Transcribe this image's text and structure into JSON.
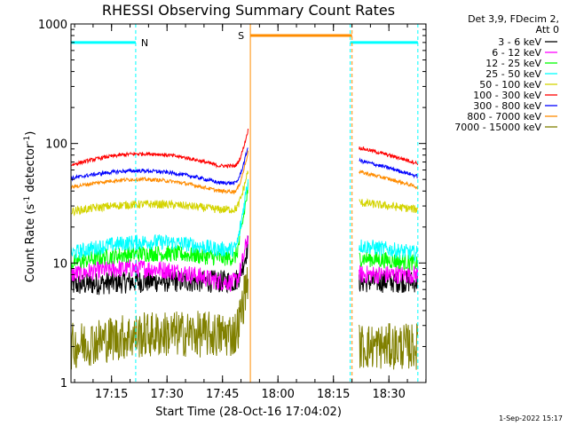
{
  "chart_data": {
    "type": "line",
    "title": "RHESSI Observing Summary Count Rates",
    "xlabel": "Start Time (28-Oct-16 17:04:02)",
    "ylabel": "Count Rate (s⁻¹ detector⁻¹)",
    "ylabel_main": "Count Rate (s",
    "ylabel_sup1": "-1",
    "ylabel_mid": " detector",
    "ylabel_sup2": "-1",
    "ylabel_end": ")",
    "yscale": "log",
    "ylim": [
      1,
      1000
    ],
    "xlim_minutes": [
      0,
      96
    ],
    "xticks": [
      {
        "label": "17:15",
        "minutes": 10.97
      },
      {
        "label": "17:30",
        "minutes": 25.97
      },
      {
        "label": "17:45",
        "minutes": 40.97
      },
      {
        "label": "18:00",
        "minutes": 55.97
      },
      {
        "label": "18:15",
        "minutes": 70.97
      },
      {
        "label": "18:30",
        "minutes": 85.97
      }
    ],
    "yticks": [
      {
        "label": "1",
        "value": 1
      },
      {
        "label": "10",
        "value": 10
      },
      {
        "label": "100",
        "value": 100
      },
      {
        "label": "1000",
        "value": 1000
      }
    ],
    "legend_header": [
      "Det 3,9, FDecim 2,",
      "Att 0"
    ],
    "annotation_date": "1-Sep-2022 15:17",
    "data_gaps": [
      [
        48.5,
        77.5
      ]
    ],
    "series": [
      {
        "name": "3 - 6 keV",
        "color": "#000000",
        "pre_start": 6.5,
        "pre_hump": 7,
        "pre_end": 7,
        "rise_end": 14,
        "post_start": 7,
        "post_end": 7,
        "noise": 0.22
      },
      {
        "name": "6 - 12 keV",
        "color": "#ff00ff",
        "pre_start": 8,
        "pre_hump": 9,
        "pre_end": 7,
        "rise_end": 17,
        "post_start": 8,
        "post_end": 8,
        "noise": 0.18
      },
      {
        "name": "12 - 25 keV",
        "color": "#00ff00",
        "pre_start": 10,
        "pre_hump": 12,
        "pre_end": 11,
        "rise_end": 42,
        "post_start": 11,
        "post_end": 10,
        "noise": 0.16
      },
      {
        "name": "25 - 50 keV",
        "color": "#00ffff",
        "pre_start": 12,
        "pre_hump": 15,
        "pre_end": 13,
        "rise_end": 50,
        "post_start": 14,
        "post_end": 12,
        "noise": 0.15
      },
      {
        "name": "50 - 100 keV",
        "color": "#d4d400",
        "pre_start": 27,
        "pre_hump": 31,
        "pre_end": 28,
        "rise_end": 60,
        "post_start": 32,
        "post_end": 28,
        "noise": 0.08
      },
      {
        "name": "100 - 300 keV",
        "color": "#ff0000",
        "pre_start": 66,
        "pre_hump": 82,
        "pre_end": 65,
        "rise_end": 130,
        "post_start": 92,
        "post_end": 68,
        "noise": 0.035
      },
      {
        "name": "300 - 800 keV",
        "color": "#0000ff",
        "pre_start": 51,
        "pre_hump": 59,
        "pre_end": 47,
        "rise_end": 95,
        "post_start": 72,
        "post_end": 53,
        "noise": 0.035
      },
      {
        "name": "800 - 7000 keV",
        "color": "#ff8c00",
        "pre_start": 43,
        "pre_hump": 50,
        "pre_end": 40,
        "rise_end": 85,
        "post_start": 58,
        "post_end": 43,
        "noise": 0.035
      },
      {
        "name": "7000 - 15000 keV",
        "color": "#808000",
        "pre_start": 2,
        "pre_hump": 2.5,
        "pre_end": 2.5,
        "rise_end": 8,
        "post_start": 2,
        "post_end": 2,
        "noise": 0.45
      }
    ],
    "flags": [
      {
        "name": "N",
        "label": "N",
        "color": "#00ffff",
        "level": 700,
        "start": 0,
        "end": 17.5,
        "line_start": 0,
        "line_end": 17.5
      },
      {
        "name": "N",
        "label": "",
        "color": "#00ffff",
        "level": 700,
        "start": 75.5,
        "end": 93.8,
        "line_start": 75.5,
        "line_end": 93.8
      },
      {
        "name": "S",
        "label": "S",
        "color": "#ff8c00",
        "level": 800,
        "start": 48.5,
        "end": 76.0,
        "line_start": 48.5,
        "line_end": 76.0
      }
    ]
  }
}
